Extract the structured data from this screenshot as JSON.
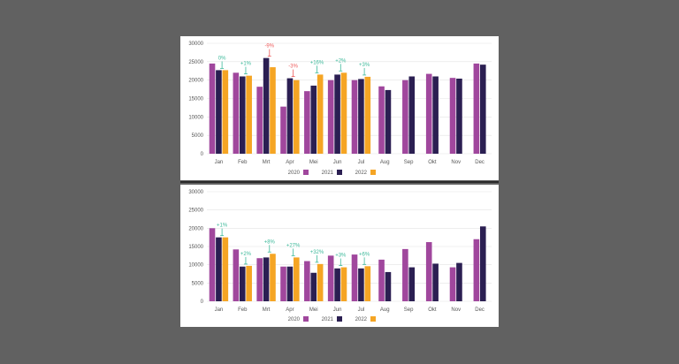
{
  "colors": {
    "2020": "#a0479d",
    "2021": "#2b1f52",
    "2022": "#f5a524",
    "up": "#3cb99a",
    "down": "#ee5b5b",
    "grid": "#e3e3e3"
  },
  "chart_data": [
    {
      "type": "bar",
      "categories": [
        "Jan",
        "Feb",
        "Mrt",
        "Apr",
        "Mei",
        "Jun",
        "Jul",
        "Aug",
        "Sep",
        "Okt",
        "Nov",
        "Dec"
      ],
      "ylim": [
        0,
        30000
      ],
      "yticks": [
        "0",
        "5000",
        "10000",
        "15000",
        "20000",
        "25000",
        "30000"
      ],
      "grid": true,
      "legend_position": "bottom-center",
      "series": [
        {
          "name": "2020",
          "values": [
            24500,
            22000,
            18200,
            12800,
            17000,
            20000,
            20000,
            18300,
            20000,
            21700,
            20600,
            24500
          ]
        },
        {
          "name": "2021",
          "values": [
            22700,
            21000,
            26000,
            20500,
            18500,
            21500,
            20300,
            17300,
            21000,
            21000,
            20400,
            24200
          ]
        },
        {
          "name": "2022",
          "values": [
            22700,
            21200,
            23500,
            20000,
            21500,
            22000,
            20900,
            null,
            null,
            null,
            null,
            null
          ]
        }
      ],
      "annotations": [
        {
          "category": "Jan",
          "label": "0%",
          "dir": "up"
        },
        {
          "category": "Feb",
          "label": "+1%",
          "dir": "up"
        },
        {
          "category": "Mrt",
          "label": "-9%",
          "dir": "down"
        },
        {
          "category": "Apr",
          "label": "-3%",
          "dir": "down"
        },
        {
          "category": "Mei",
          "label": "+16%",
          "dir": "up"
        },
        {
          "category": "Jun",
          "label": "+2%",
          "dir": "up"
        },
        {
          "category": "Jul",
          "label": "+3%",
          "dir": "up"
        }
      ]
    },
    {
      "type": "bar",
      "categories": [
        "Jan",
        "Feb",
        "Mrt",
        "Apr",
        "Mei",
        "Jun",
        "Jul",
        "Aug",
        "Sep",
        "Okt",
        "Nov",
        "Dec"
      ],
      "ylim": [
        0,
        30000
      ],
      "yticks": [
        "0",
        "5000",
        "10000",
        "15000",
        "20000",
        "25000",
        "30000"
      ],
      "grid": true,
      "legend_position": "bottom-center",
      "series": [
        {
          "name": "2020",
          "values": [
            20000,
            14200,
            11800,
            9500,
            11000,
            12500,
            12800,
            11400,
            14300,
            16200,
            9300,
            17000
          ]
        },
        {
          "name": "2021",
          "values": [
            17500,
            9500,
            12000,
            9500,
            7800,
            9000,
            9000,
            8000,
            9300,
            10300,
            10500,
            20500
          ]
        },
        {
          "name": "2022",
          "values": [
            17500,
            9700,
            13000,
            12000,
            10200,
            9300,
            9600,
            null,
            null,
            null,
            null,
            null
          ]
        }
      ],
      "annotations": [
        {
          "category": "Jan",
          "label": "+1%",
          "dir": "up"
        },
        {
          "category": "Feb",
          "label": "+2%",
          "dir": "up"
        },
        {
          "category": "Mrt",
          "label": "+8%",
          "dir": "up"
        },
        {
          "category": "Apr",
          "label": "+27%",
          "dir": "up"
        },
        {
          "category": "Mei",
          "label": "+32%",
          "dir": "up"
        },
        {
          "category": "Jun",
          "label": "+3%",
          "dir": "up"
        },
        {
          "category": "Jul",
          "label": "+6%",
          "dir": "up"
        }
      ]
    }
  ]
}
